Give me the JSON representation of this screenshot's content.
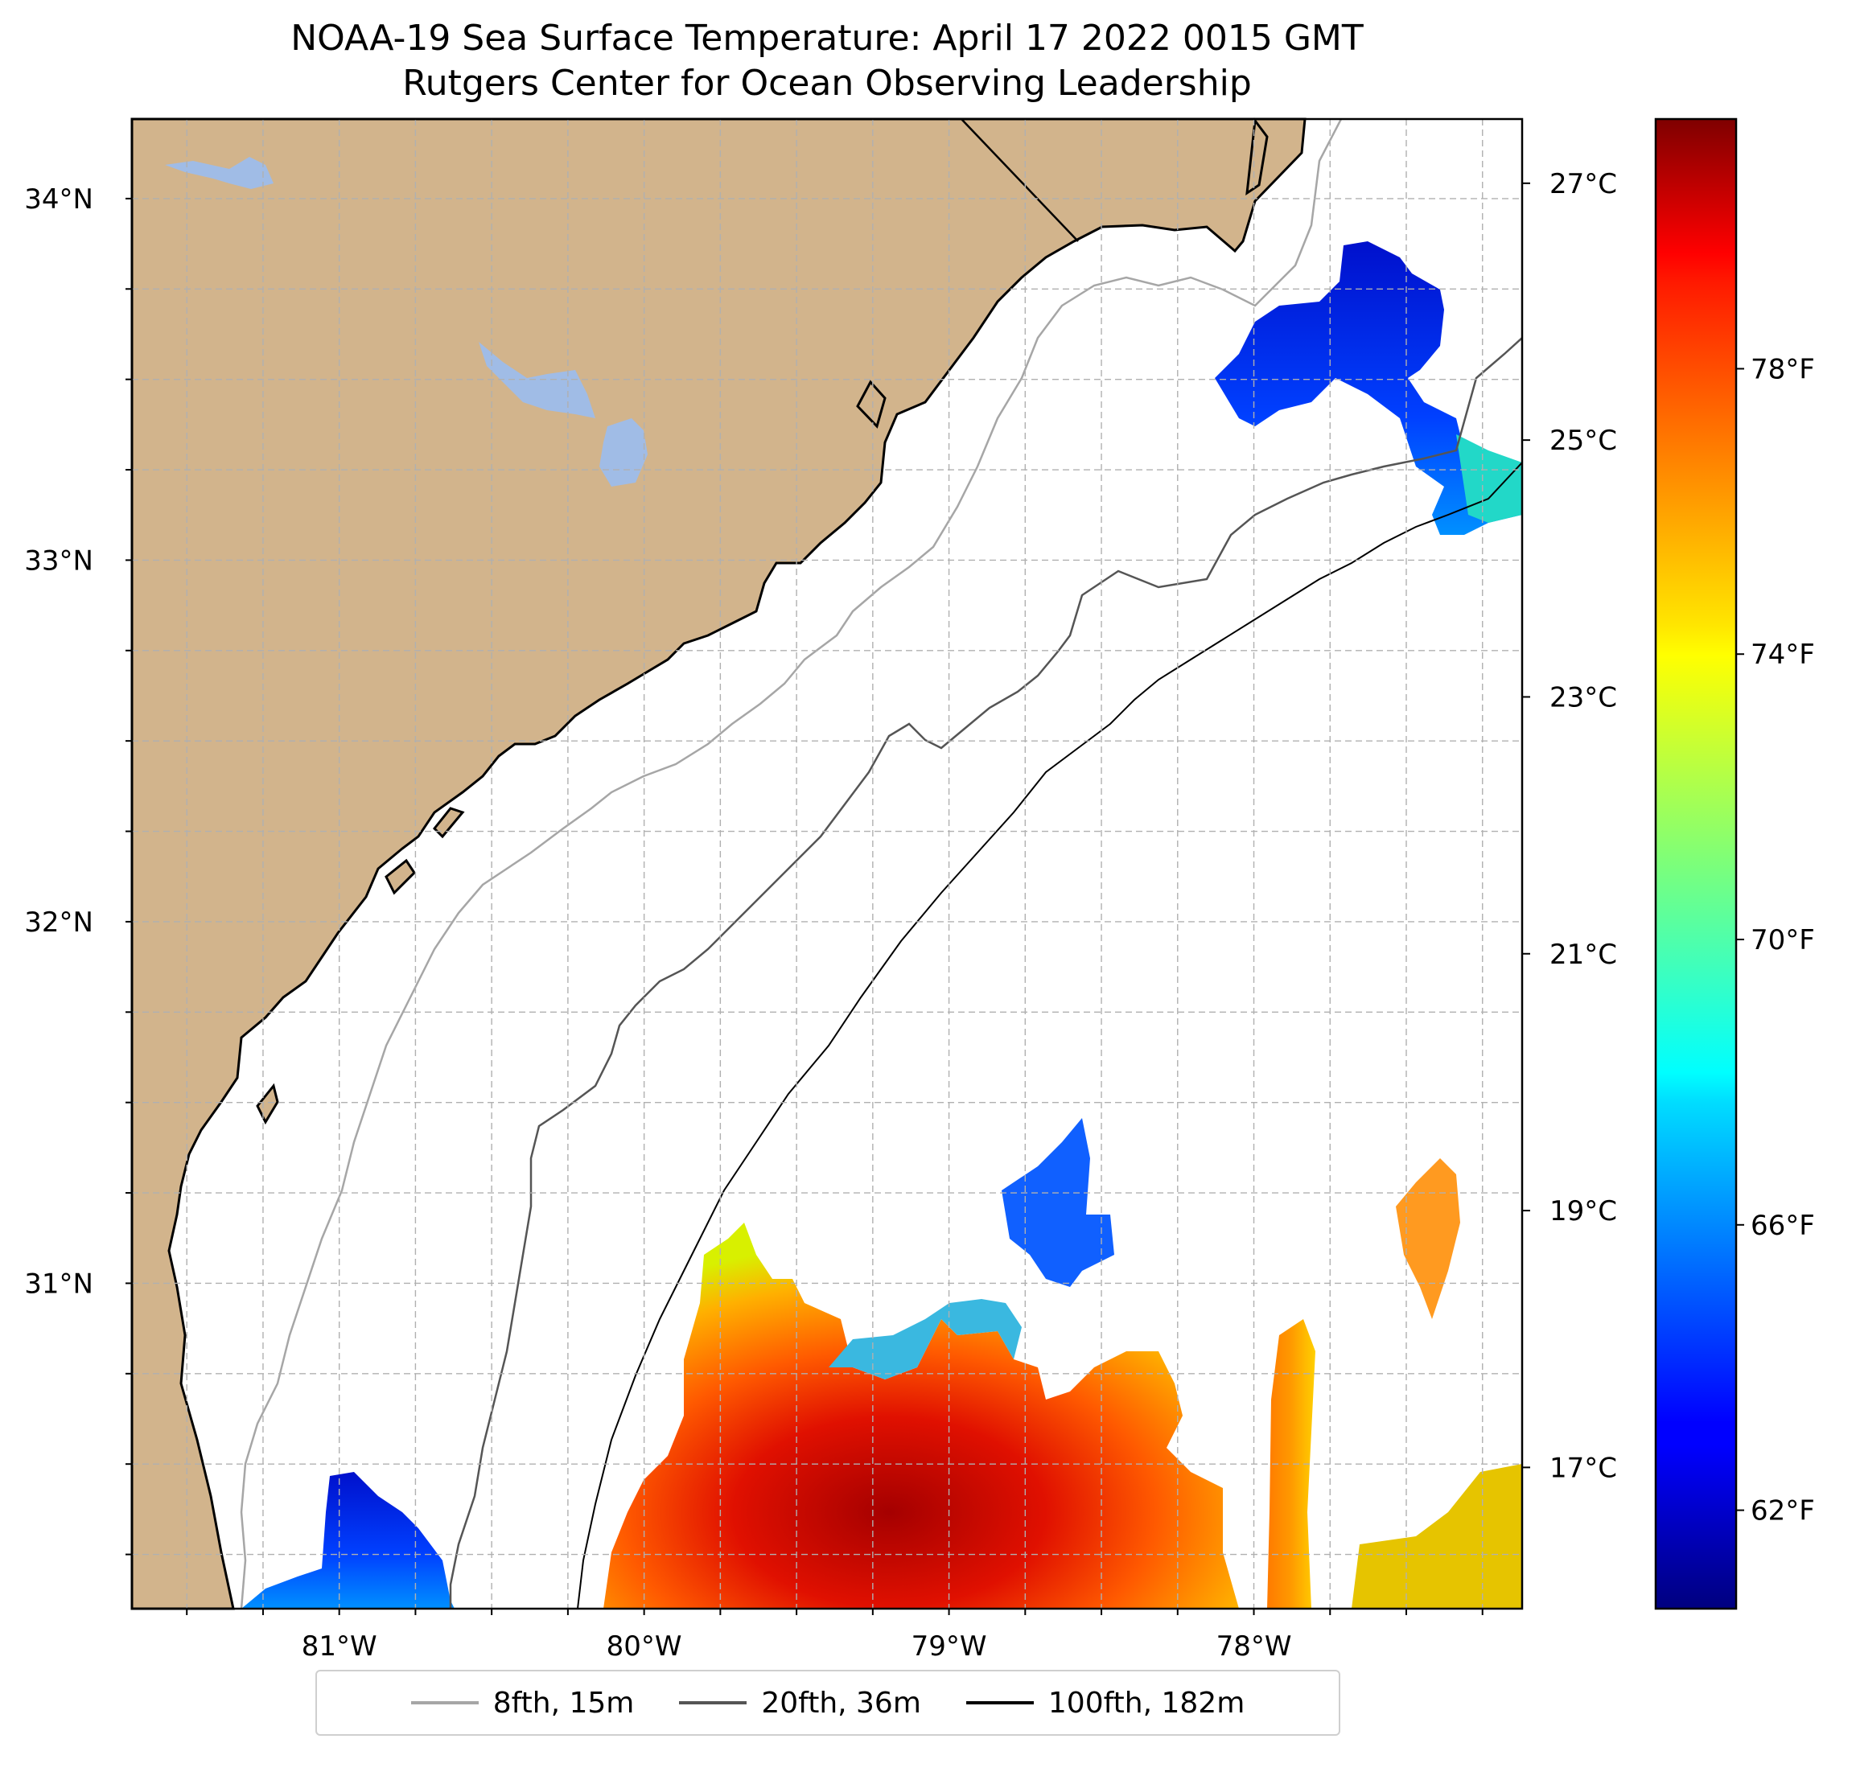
{
  "title": {
    "line1": "NOAA-19 Sea Surface Temperature: April 17 2022 0015 GMT",
    "line2": "Rutgers Center for Ocean Observing Leadership"
  },
  "map": {
    "lon_range": [
      -81.68,
      -77.12
    ],
    "lat_range": [
      30.1,
      34.22
    ],
    "lat_ticks": [
      {
        "value": 34,
        "label": "34°N"
      },
      {
        "value": 33,
        "label": "33°N"
      },
      {
        "value": 32,
        "label": "32°N"
      },
      {
        "value": 31,
        "label": "31°N"
      }
    ],
    "lon_ticks": [
      {
        "value": -81,
        "label": "81°W"
      },
      {
        "value": -80,
        "label": "80°W"
      },
      {
        "value": -79,
        "label": "79°W"
      },
      {
        "value": -78,
        "label": "78°W"
      }
    ],
    "gridlines": "dashed",
    "colors": {
      "land": "#d2b48c",
      "water_body": "#a0bce6",
      "ocean": "#ffffff"
    }
  },
  "colorbar": {
    "colormap": "jet",
    "range_c": [
      15.9,
      27.5
    ],
    "celsius_ticks": [
      {
        "value": 27,
        "label": "27°C"
      },
      {
        "value": 25,
        "label": "25°C"
      },
      {
        "value": 23,
        "label": "23°C"
      },
      {
        "value": 21,
        "label": "21°C"
      },
      {
        "value": 19,
        "label": "19°C"
      },
      {
        "value": 17,
        "label": "17°C"
      }
    ],
    "fahrenheit_ticks": [
      {
        "value": 78,
        "label": "78°F"
      },
      {
        "value": 74,
        "label": "74°F"
      },
      {
        "value": 70,
        "label": "70°F"
      },
      {
        "value": 66,
        "label": "66°F"
      },
      {
        "value": 62,
        "label": "62°F"
      }
    ]
  },
  "legend": {
    "placement": "bottom-center",
    "items": [
      {
        "label": "8fth, 15m",
        "color": "#a6a6a6"
      },
      {
        "label": "20fth, 36m",
        "color": "#555555"
      },
      {
        "label": "100fth, 182m",
        "color": "#000000"
      }
    ]
  }
}
